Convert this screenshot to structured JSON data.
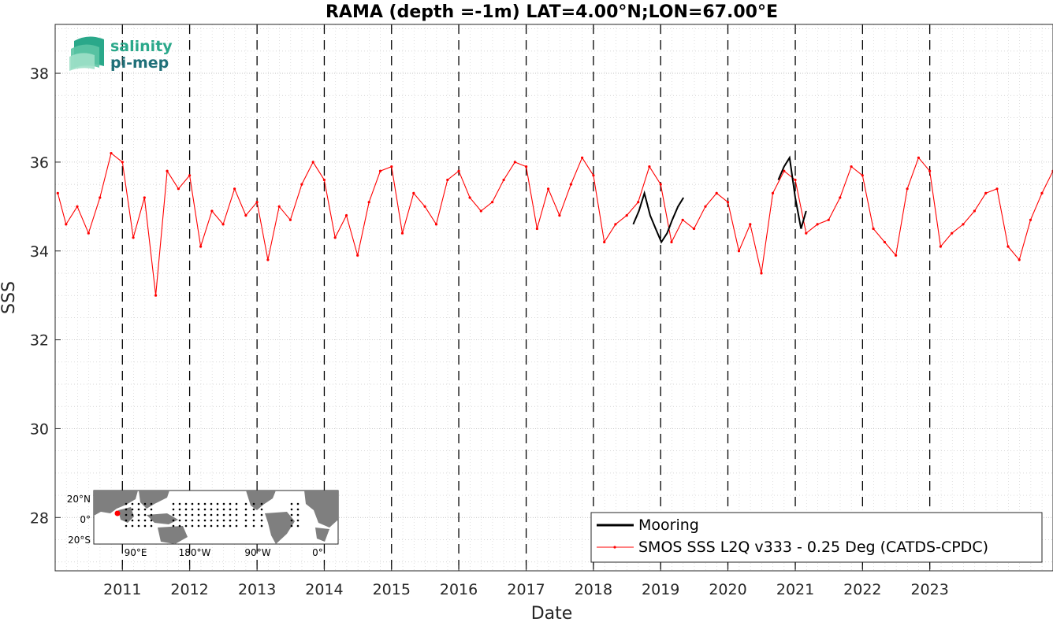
{
  "chart_data": {
    "type": "line",
    "title": "RAMA (depth =-1m) LAT=4.00°N;LON=67.00°E",
    "xlabel": "Date",
    "ylabel": "SSS",
    "xlim": [
      "2010-01-01",
      "2024-10-31"
    ],
    "ylim": [
      26.8,
      39.1
    ],
    "x_ticks": [
      "2011",
      "2012",
      "2013",
      "2014",
      "2015",
      "2016",
      "2017",
      "2018",
      "2019",
      "2020",
      "2021",
      "2022",
      "2023"
    ],
    "x_tick_dates": [
      "2011-01-01",
      "2012-01-01",
      "2013-01-01",
      "2014-01-01",
      "2015-01-01",
      "2016-01-01",
      "2017-01-01",
      "2018-01-01",
      "2019-01-01",
      "2020-01-01",
      "2021-01-01",
      "2022-01-01",
      "2023-01-01"
    ],
    "y_ticks": [
      28,
      30,
      32,
      34,
      36,
      38
    ],
    "grid": true,
    "year_dividers": "dashed vertical lines at each January 1",
    "legend_position": "bottom-right",
    "series": [
      {
        "name": "Mooring",
        "color": "#000000",
        "style": "solid thick line",
        "segments": [
          {
            "x": [
              "2018-08-05",
              "2018-09-05",
              "2018-10-05",
              "2018-11-05",
              "2018-12-05",
              "2019-01-05",
              "2019-02-05",
              "2019-03-05",
              "2019-04-05",
              "2019-05-05"
            ],
            "y": [
              34.6,
              34.9,
              35.3,
              34.8,
              34.5,
              34.2,
              34.4,
              34.7,
              35.0,
              35.2
            ]
          },
          {
            "x": [
              "2020-10-01",
              "2020-11-01",
              "2020-12-01",
              "2021-01-01",
              "2021-02-01",
              "2021-03-01"
            ],
            "y": [
              35.6,
              35.9,
              36.1,
              35.2,
              34.5,
              34.9
            ]
          }
        ]
      },
      {
        "name": "SMOS SSS L2Q v333 - 0.25 Deg (CATDS-CPDC)",
        "color": "#ff0000",
        "style": "thin line with dot markers",
        "x": [
          "2010-01-15",
          "2010-03-01",
          "2010-05-01",
          "2010-07-01",
          "2010-09-01",
          "2010-11-01",
          "2011-01-01",
          "2011-03-01",
          "2011-05-01",
          "2011-07-01",
          "2011-09-01",
          "2011-11-01",
          "2012-01-01",
          "2012-03-01",
          "2012-05-01",
          "2012-07-01",
          "2012-09-01",
          "2012-11-01",
          "2013-01-01",
          "2013-03-01",
          "2013-05-01",
          "2013-07-01",
          "2013-09-01",
          "2013-11-01",
          "2014-01-01",
          "2014-03-01",
          "2014-05-01",
          "2014-07-01",
          "2014-09-01",
          "2014-11-01",
          "2015-01-01",
          "2015-03-01",
          "2015-05-01",
          "2015-07-01",
          "2015-09-01",
          "2015-11-01",
          "2016-01-01",
          "2016-03-01",
          "2016-05-01",
          "2016-07-01",
          "2016-09-01",
          "2016-11-01",
          "2017-01-01",
          "2017-03-01",
          "2017-05-01",
          "2017-07-01",
          "2017-09-01",
          "2017-11-01",
          "2018-01-01",
          "2018-03-01",
          "2018-05-01",
          "2018-07-01",
          "2018-09-01",
          "2018-11-01",
          "2019-01-01",
          "2019-03-01",
          "2019-05-01",
          "2019-07-01",
          "2019-09-01",
          "2019-11-01",
          "2020-01-01",
          "2020-03-01",
          "2020-05-01",
          "2020-07-01",
          "2020-09-01",
          "2020-11-01",
          "2021-01-01",
          "2021-03-01",
          "2021-05-01",
          "2021-07-01",
          "2021-09-01",
          "2021-11-01",
          "2022-01-01",
          "2022-03-01",
          "2022-05-01",
          "2022-07-01",
          "2022-09-01",
          "2022-11-01",
          "2023-01-01",
          "2023-03-01",
          "2023-05-01",
          "2023-07-01",
          "2023-09-01",
          "2023-11-01",
          "2024-01-01",
          "2024-03-01",
          "2024-05-01",
          "2024-07-01",
          "2024-09-01",
          "2024-10-31"
        ],
        "y": [
          35.3,
          34.6,
          35.0,
          34.4,
          35.2,
          36.2,
          36.0,
          34.3,
          35.2,
          33.0,
          35.8,
          35.4,
          35.7,
          34.1,
          34.9,
          34.6,
          35.4,
          34.8,
          35.1,
          33.8,
          35.0,
          34.7,
          35.5,
          36.0,
          35.6,
          34.3,
          34.8,
          33.9,
          35.1,
          35.8,
          35.9,
          34.4,
          35.3,
          35.0,
          34.6,
          35.6,
          35.8,
          35.2,
          34.9,
          35.1,
          35.6,
          36.0,
          35.9,
          34.5,
          35.4,
          34.8,
          35.5,
          36.1,
          35.7,
          34.2,
          34.6,
          34.8,
          35.1,
          35.9,
          35.5,
          34.2,
          34.7,
          34.5,
          35.0,
          35.3,
          35.1,
          34.0,
          34.6,
          33.5,
          35.3,
          35.8,
          35.6,
          34.4,
          34.6,
          34.7,
          35.2,
          35.9,
          35.7,
          34.5,
          34.2,
          33.9,
          35.4,
          36.1,
          35.8,
          34.1,
          34.4,
          34.6,
          34.9,
          35.3,
          35.4,
          34.1,
          33.8,
          34.7,
          35.3,
          35.8
        ]
      }
    ]
  },
  "logo": {
    "line1": "salinity",
    "line2": "pi-mep"
  },
  "inset_map": {
    "lat_labels": [
      "20°N",
      "0°",
      "20°S"
    ],
    "lon_labels": [
      "90°E",
      "180°W",
      "90°W",
      "0°"
    ],
    "marker_color": "#ff0000",
    "land_color": "#7f7f7f"
  }
}
